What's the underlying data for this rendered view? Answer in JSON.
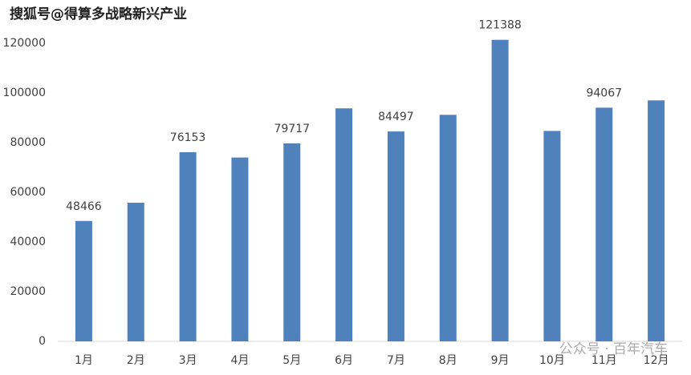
{
  "chart_data": {
    "type": "bar",
    "categories": [
      "1月",
      "2月",
      "3月",
      "4月",
      "5月",
      "6月",
      "7月",
      "8月",
      "9月",
      "10月",
      "11月",
      "12月"
    ],
    "values": [
      48466,
      55800,
      76153,
      74000,
      79717,
      93800,
      84497,
      91200,
      121388,
      84700,
      94067,
      97000
    ],
    "value_labels": [
      "48466",
      null,
      "76153",
      null,
      "79717",
      null,
      "84497",
      null,
      "121388",
      null,
      "94067",
      null
    ],
    "color": "#4f81bd",
    "ylim": [
      0,
      120000
    ],
    "yticks": [
      0,
      20000,
      40000,
      60000,
      80000,
      100000,
      120000
    ],
    "grid": false,
    "annotations": [
      "搜狐号@得算多战略新兴产业",
      "公众号 · 百年汽车"
    ]
  }
}
